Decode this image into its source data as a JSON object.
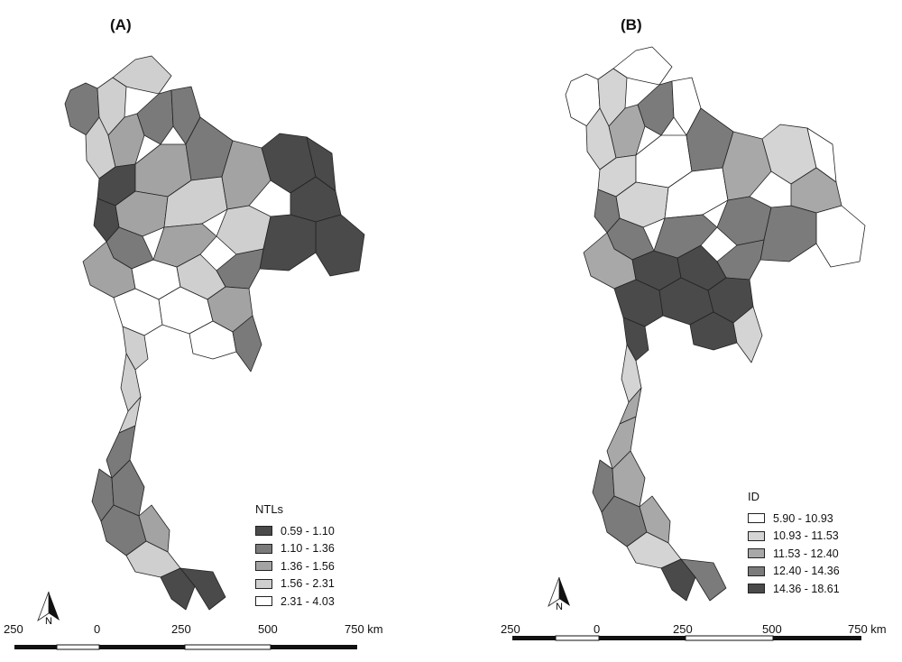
{
  "panels": {
    "a": {
      "title": "(A)",
      "legend": {
        "title": "NTLs",
        "items": [
          {
            "label": "0.59 - 1.10",
            "color": "#4a4a4a"
          },
          {
            "label": "1.10 - 1.36",
            "color": "#7a7a7a"
          },
          {
            "label": "1.36 - 1.56",
            "color": "#a3a3a3"
          },
          {
            "label": "1.56 - 2.31",
            "color": "#cfcfcf"
          },
          {
            "label": "2.31 - 4.03",
            "color": "#ffffff"
          }
        ]
      },
      "scale": {
        "labels": [
          "250",
          "0",
          "250",
          "500",
          "750 km"
        ]
      },
      "north_label": "N"
    },
    "b": {
      "title": "(B)",
      "legend": {
        "title": "ID",
        "items": [
          {
            "label": "5.90 - 10.93",
            "color": "#ffffff"
          },
          {
            "label": "10.93 - 11.53",
            "color": "#d4d4d4"
          },
          {
            "label": "11.53 - 12.40",
            "color": "#a8a8a8"
          },
          {
            "label": "12.40 - 14.36",
            "color": "#7b7b7b"
          },
          {
            "label": "14.36 - 18.61",
            "color": "#4a4a4a"
          }
        ]
      },
      "scale": {
        "labels": [
          "250",
          "0",
          "250",
          "500",
          "750 km"
        ]
      },
      "north_label": "N"
    }
  }
}
